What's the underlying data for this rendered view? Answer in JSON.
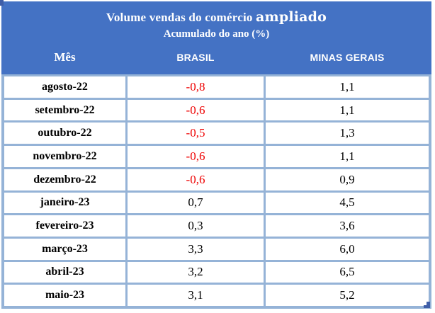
{
  "title": {
    "main": "Volume vendas do comércio",
    "emphasis": "ampliado",
    "subtitle": "Acumulado do ano (%)"
  },
  "columns": {
    "month": "Mês",
    "brasil": "BRASIL",
    "minas": "MINAS GERAIS"
  },
  "rows": [
    {
      "month": "agosto-22",
      "brasil": "-0,8",
      "brasil_negative": true,
      "minas": "1,1"
    },
    {
      "month": "setembro-22",
      "brasil": "-0,6",
      "brasil_negative": true,
      "minas": "1,1"
    },
    {
      "month": "outubro-22",
      "brasil": "-0,5",
      "brasil_negative": true,
      "minas": "1,3"
    },
    {
      "month": "novembro-22",
      "brasil": "-0,6",
      "brasil_negative": true,
      "minas": "1,1"
    },
    {
      "month": "dezembro-22",
      "brasil": "-0,6",
      "brasil_negative": true,
      "minas": "0,9"
    },
    {
      "month": "janeiro-23",
      "brasil": "0,7",
      "brasil_negative": false,
      "minas": "4,5"
    },
    {
      "month": "fevereiro-23",
      "brasil": "0,3",
      "brasil_negative": false,
      "minas": "3,6"
    },
    {
      "month": "março-23",
      "brasil": "3,3",
      "brasil_negative": false,
      "minas": "6,0"
    },
    {
      "month": "abril-23",
      "brasil": "3,2",
      "brasil_negative": false,
      "minas": "6,5"
    },
    {
      "month": "maio-23",
      "brasil": "3,1",
      "brasil_negative": false,
      "minas": "5,2"
    }
  ],
  "colors": {
    "header_bg": "#4472C4",
    "border": "#95B3D7",
    "negative_text": "#EE0000",
    "text": "#000000",
    "header_text": "#FFFFFF",
    "handle": "#3F5EA8"
  },
  "chart_data": {
    "type": "table",
    "title": "Volume vendas do comércio ampliado",
    "subtitle": "Acumulado do ano (%)",
    "categories": [
      "agosto-22",
      "setembro-22",
      "outubro-22",
      "novembro-22",
      "dezembro-22",
      "janeiro-23",
      "fevereiro-23",
      "março-23",
      "abril-23",
      "maio-23"
    ],
    "series": [
      {
        "name": "BRASIL",
        "values": [
          -0.8,
          -0.6,
          -0.5,
          -0.6,
          -0.6,
          0.7,
          0.3,
          3.3,
          3.2,
          3.1
        ]
      },
      {
        "name": "MINAS GERAIS",
        "values": [
          1.1,
          1.1,
          1.3,
          1.1,
          0.9,
          4.5,
          3.6,
          6.0,
          6.5,
          5.2
        ]
      }
    ],
    "layout_hints": {
      "negative_values_in_red": true,
      "decimal_separator": ","
    }
  }
}
